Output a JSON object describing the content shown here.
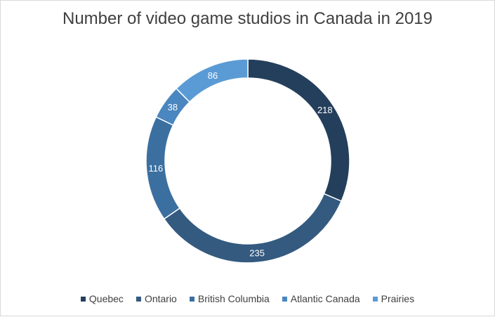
{
  "chart_data": {
    "type": "pie",
    "title": "Number of video game studios in Canada in 2019",
    "categories": [
      "Quebec",
      "Ontario",
      "British Columbia",
      "Atlantic Canada",
      "Prairies"
    ],
    "values": [
      218,
      235,
      116,
      38,
      86
    ],
    "colors": [
      "#243f5c",
      "#345a80",
      "#3b6fa0",
      "#4a86bf",
      "#5b9bd5"
    ],
    "data_label_color": "#ffffff",
    "donut": true,
    "legend_position": "bottom"
  }
}
